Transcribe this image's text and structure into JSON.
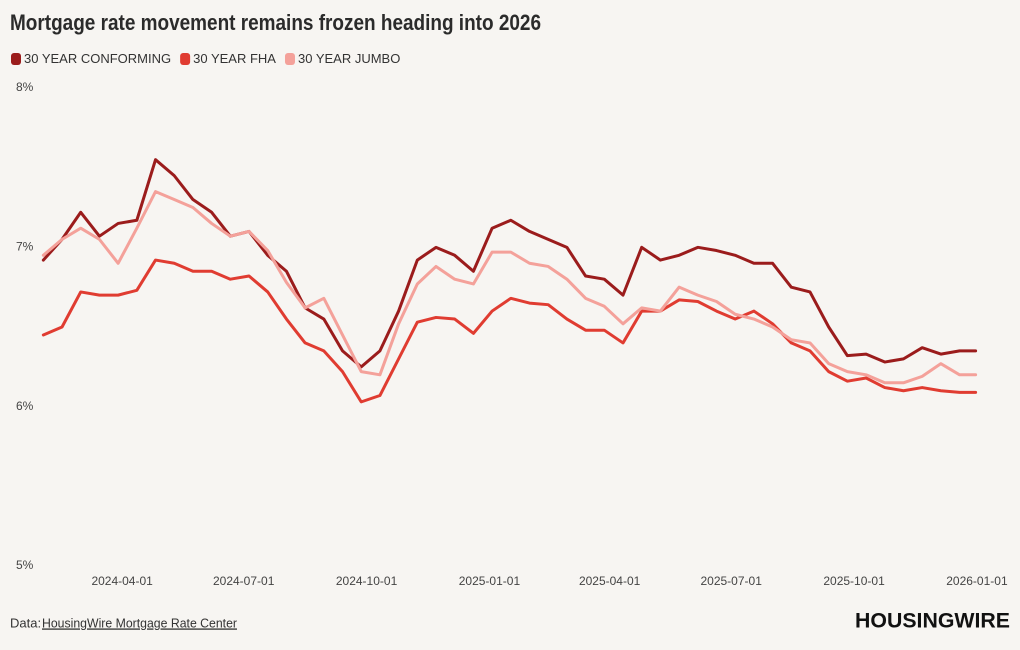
{
  "chart_data": {
    "type": "line",
    "title": "Mortgage rate movement remains frozen heading into 2026",
    "x": [
      "2024-02-02",
      "2024-02-16",
      "2024-03-01",
      "2024-03-15",
      "2024-03-29",
      "2024-04-12",
      "2024-04-26",
      "2024-05-10",
      "2024-05-24",
      "2024-06-07",
      "2024-06-21",
      "2024-07-05",
      "2024-07-19",
      "2024-08-02",
      "2024-08-16",
      "2024-08-30",
      "2024-09-13",
      "2024-09-27",
      "2024-10-11",
      "2024-10-25",
      "2024-11-08",
      "2024-11-22",
      "2024-12-06",
      "2024-12-20",
      "2025-01-03",
      "2025-01-17",
      "2025-01-31",
      "2025-02-14",
      "2025-02-28",
      "2025-03-14",
      "2025-03-28",
      "2025-04-11",
      "2025-04-25",
      "2025-05-09",
      "2025-05-23",
      "2025-06-06",
      "2025-06-20",
      "2025-07-04",
      "2025-07-18",
      "2025-08-01",
      "2025-08-15",
      "2025-08-29",
      "2025-09-12",
      "2025-09-26",
      "2025-10-10",
      "2025-10-24",
      "2025-11-07",
      "2025-11-21",
      "2025-12-05",
      "2025-12-19",
      "2025-12-31"
    ],
    "series": [
      {
        "name": "30 YEAR CONFORMING",
        "color": "#9b1c1c",
        "values": [
          6.92,
          7.05,
          7.22,
          7.07,
          7.15,
          7.17,
          7.55,
          7.45,
          7.3,
          7.22,
          7.07,
          7.1,
          6.95,
          6.85,
          6.62,
          6.55,
          6.35,
          6.25,
          6.35,
          6.6,
          6.92,
          7.0,
          6.95,
          6.85,
          7.12,
          7.17,
          7.1,
          7.05,
          7.0,
          6.82,
          6.8,
          6.7,
          7.0,
          6.92,
          6.95,
          7.0,
          6.98,
          6.95,
          6.9,
          6.9,
          6.75,
          6.72,
          6.5,
          6.32,
          6.33,
          6.28,
          6.3,
          6.37,
          6.33,
          6.35,
          6.35
        ]
      },
      {
        "name": "30 YEAR FHA",
        "color": "#e03c31",
        "values": [
          6.45,
          6.5,
          6.72,
          6.7,
          6.7,
          6.73,
          6.92,
          6.9,
          6.85,
          6.85,
          6.8,
          6.82,
          6.72,
          6.55,
          6.4,
          6.35,
          6.22,
          6.03,
          6.07,
          6.3,
          6.53,
          6.56,
          6.55,
          6.46,
          6.6,
          6.68,
          6.65,
          6.64,
          6.55,
          6.48,
          6.48,
          6.4,
          6.6,
          6.6,
          6.67,
          6.66,
          6.6,
          6.55,
          6.6,
          6.52,
          6.4,
          6.35,
          6.22,
          6.16,
          6.18,
          6.12,
          6.1,
          6.12,
          6.1,
          6.09,
          6.09
        ]
      },
      {
        "name": "30 YEAR JUMBO",
        "color": "#f4a19a",
        "values": [
          6.95,
          7.05,
          7.12,
          7.05,
          6.9,
          7.12,
          7.35,
          7.3,
          7.25,
          7.15,
          7.07,
          7.1,
          6.98,
          6.78,
          6.62,
          6.68,
          6.45,
          6.22,
          6.2,
          6.52,
          6.77,
          6.88,
          6.8,
          6.77,
          6.97,
          6.97,
          6.9,
          6.88,
          6.8,
          6.68,
          6.63,
          6.52,
          6.62,
          6.6,
          6.75,
          6.7,
          6.66,
          6.58,
          6.55,
          6.5,
          6.42,
          6.4,
          6.27,
          6.22,
          6.2,
          6.15,
          6.15,
          6.19,
          6.27,
          6.2,
          6.2
        ]
      }
    ],
    "xlim": [
      "2024-02-01",
      "2026-01-25"
    ],
    "xticks": [
      "2024-04-01",
      "2024-07-01",
      "2024-10-01",
      "2025-01-01",
      "2025-04-01",
      "2025-07-01",
      "2025-10-01",
      "2026-01-01"
    ],
    "ylim": [
      5,
      8
    ],
    "yticks": [
      {
        "value": 5,
        "label": "5%"
      },
      {
        "value": 6,
        "label": "6%"
      },
      {
        "value": 7,
        "label": "7%"
      },
      {
        "value": 8,
        "label": "8%"
      }
    ],
    "grid": false,
    "legend": "top-left",
    "source_prefix": "Data:",
    "source": "HousingWire Mortgage Rate Center",
    "brand": "HOUSINGWIRE"
  }
}
